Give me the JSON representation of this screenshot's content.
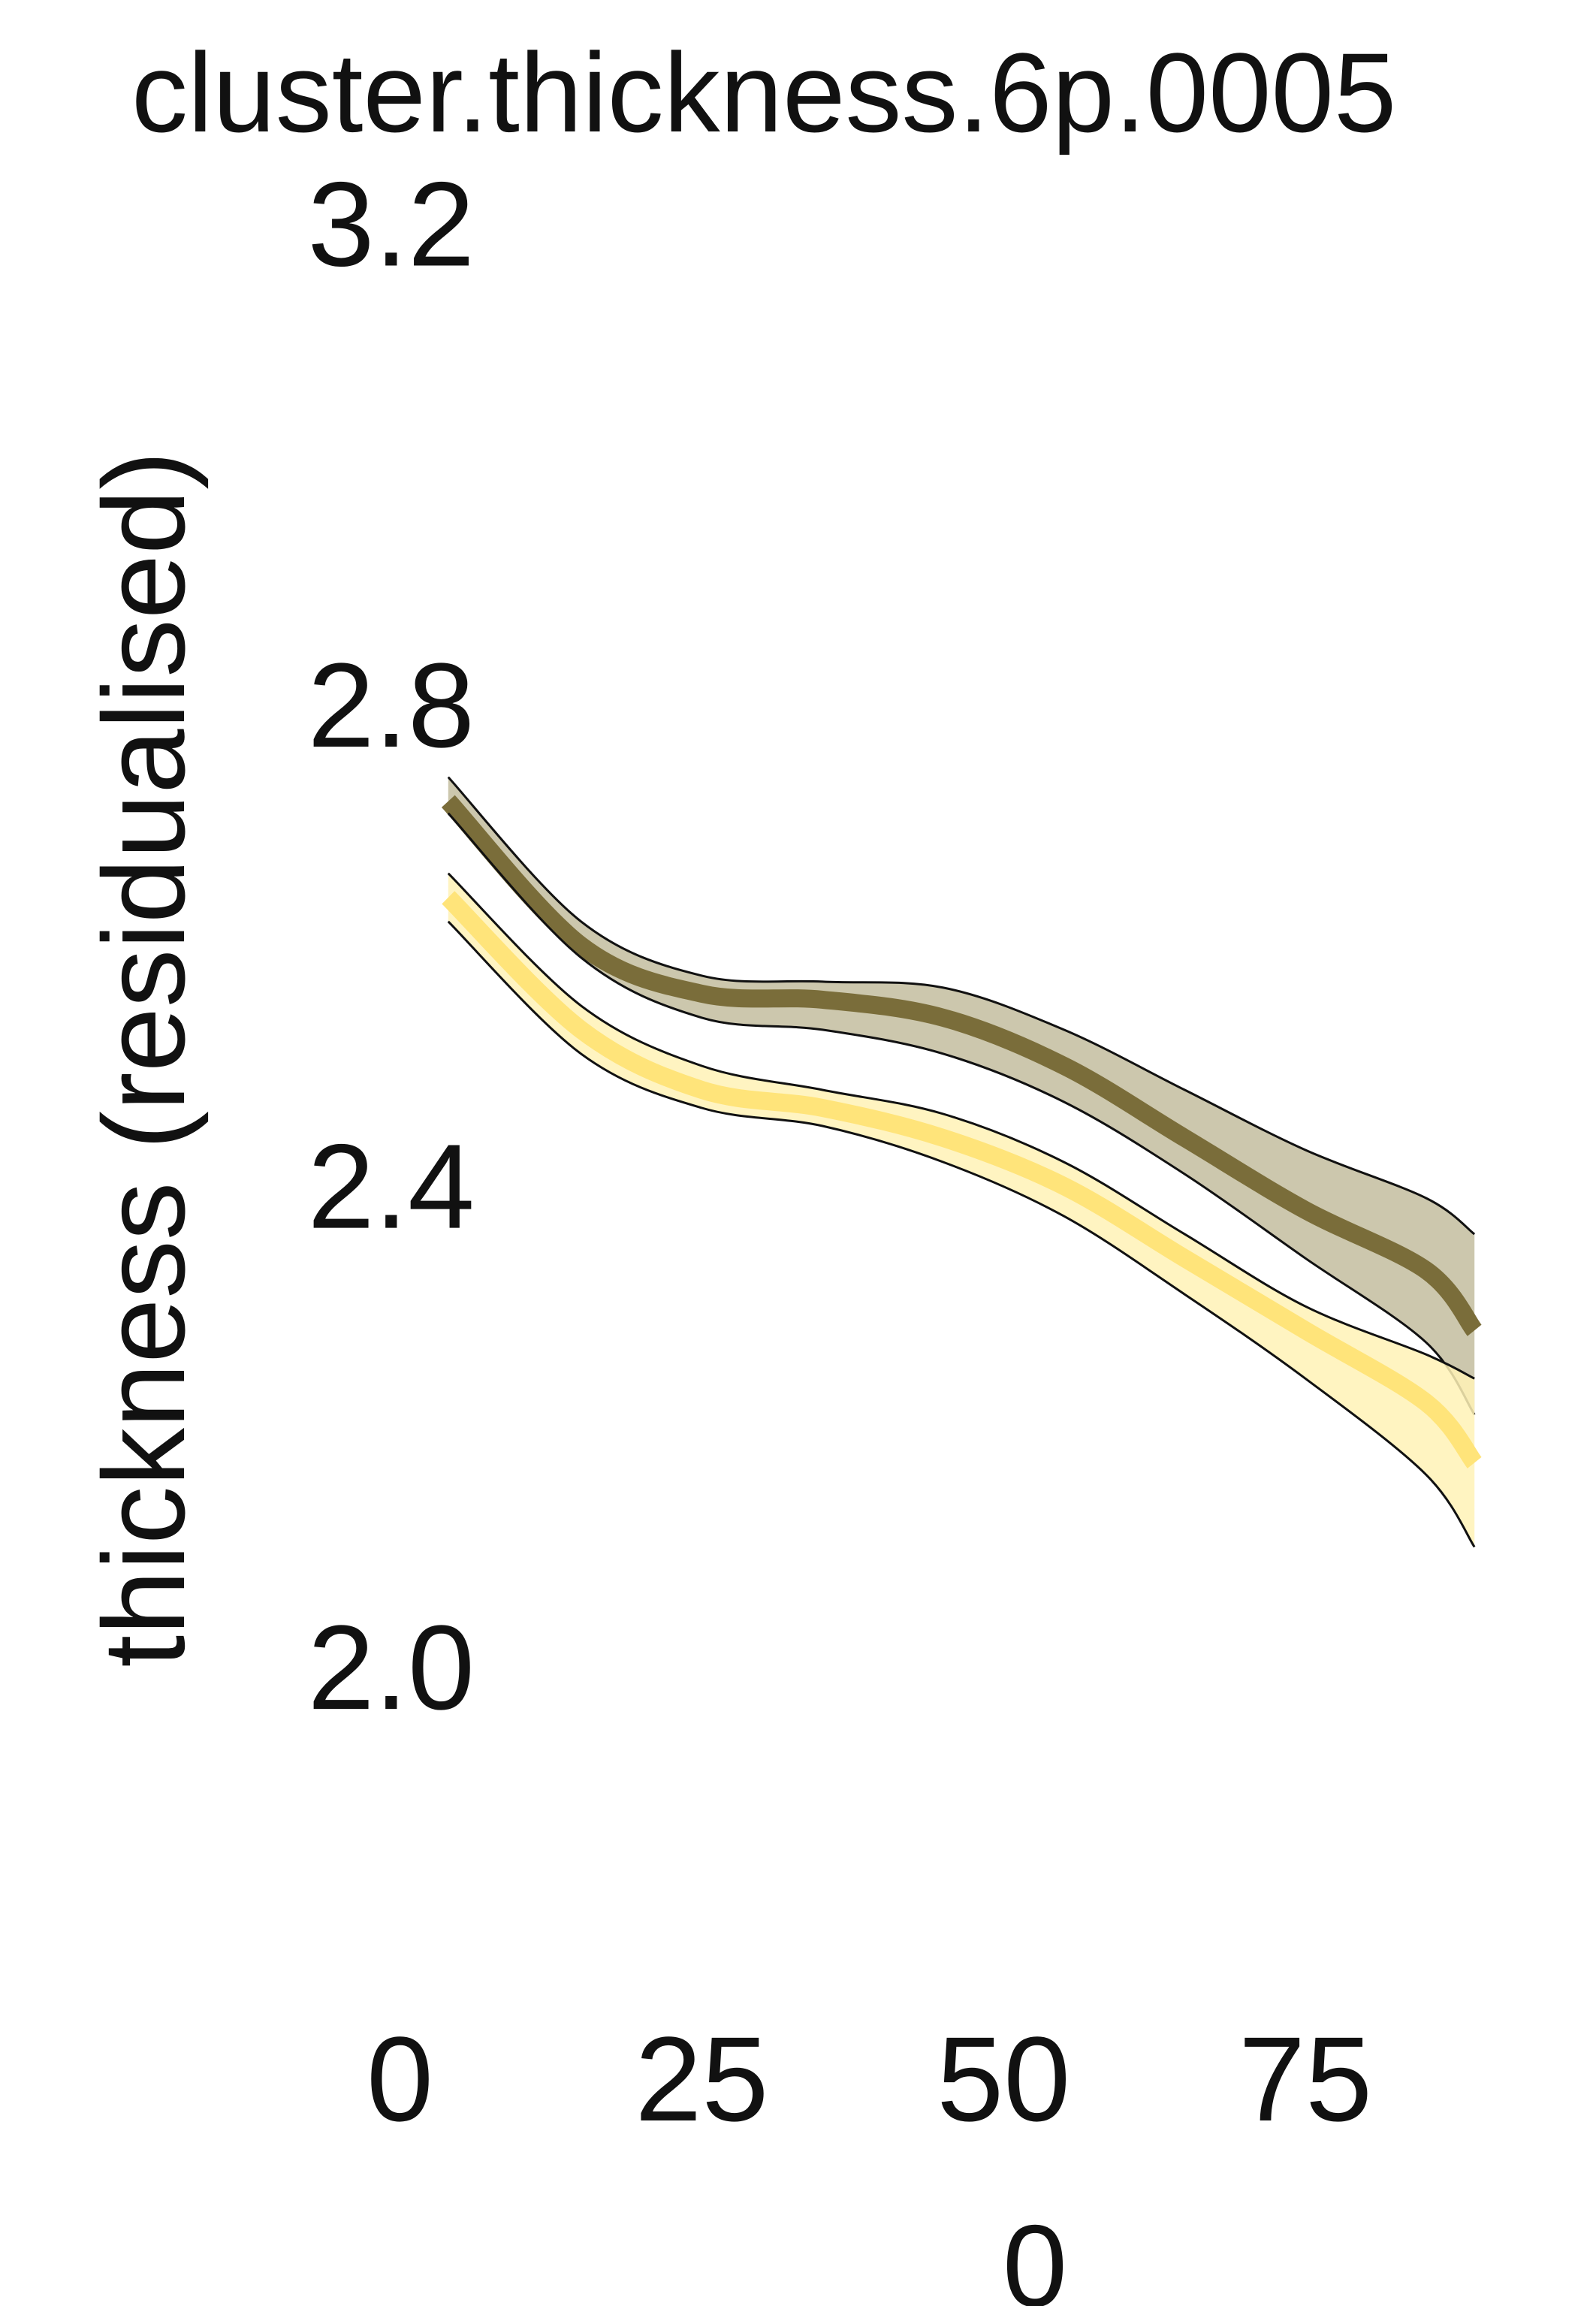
{
  "chart_data": {
    "type": "line",
    "title": "cluster.thickness.6p.0005",
    "xlabel": "0",
    "ylabel": "thickness (residualised)",
    "xlim": [
      -7,
      100
    ],
    "ylim": [
      1.7,
      3.23
    ],
    "x_ticks": [
      "0",
      "25",
      "50",
      "75"
    ],
    "y_ticks": [
      "2.0",
      "2.4",
      "2.8",
      "3.2"
    ],
    "grid": false,
    "colors": {
      "dark_line": "#7a6d3a",
      "dark_band": "#c9c4a9",
      "light_line": "#ffe47a",
      "light_band": "#fff2b6",
      "band_edge": "#111111"
    },
    "series": [
      {
        "x": [
          4,
          15,
          25,
          35,
          45,
          55,
          65,
          75,
          85,
          89
        ],
        "y": [
          2.72,
          2.6,
          2.56,
          2.555,
          2.54,
          2.5,
          2.44,
          2.38,
          2.33,
          2.28
        ],
        "lower": [
          2.71,
          2.59,
          2.54,
          2.53,
          2.51,
          2.47,
          2.41,
          2.34,
          2.27,
          2.21
        ],
        "upper": [
          2.74,
          2.62,
          2.575,
          2.57,
          2.565,
          2.53,
          2.48,
          2.43,
          2.39,
          2.36
        ]
      },
      {
        "x": [
          4,
          15,
          25,
          35,
          45,
          55,
          65,
          75,
          85,
          89
        ],
        "y": [
          2.64,
          2.53,
          2.48,
          2.465,
          2.44,
          2.4,
          2.34,
          2.28,
          2.22,
          2.17
        ],
        "lower": [
          2.62,
          2.51,
          2.465,
          2.45,
          2.42,
          2.375,
          2.31,
          2.24,
          2.16,
          2.1
        ],
        "upper": [
          2.66,
          2.55,
          2.5,
          2.48,
          2.46,
          2.42,
          2.36,
          2.3,
          2.26,
          2.24
        ]
      }
    ]
  }
}
